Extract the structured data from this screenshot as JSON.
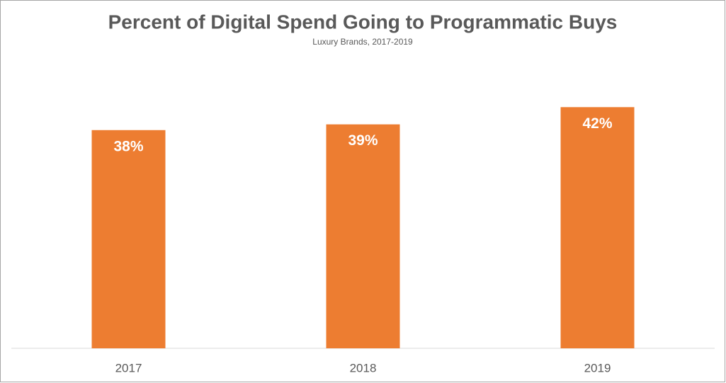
{
  "chart_data": {
    "type": "bar",
    "title": "Percent of Digital Spend Going to Programmatic Buys",
    "subtitle": "Luxury Brands, 2017-2019",
    "categories": [
      "2017",
      "2018",
      "2019"
    ],
    "values": [
      38,
      39,
      42
    ],
    "value_labels": [
      "38%",
      "39%",
      "42%"
    ],
    "color": "#ed7d31",
    "ylim": [
      0,
      45
    ]
  }
}
